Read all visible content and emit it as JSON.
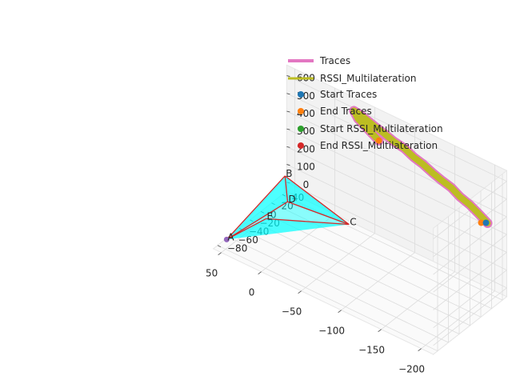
{
  "chart_data": {
    "type": "scatter3d",
    "axes": {
      "x": {
        "ticks": [
          -200,
          -150,
          -100,
          -50,
          0,
          50
        ],
        "tick_labels": [
          "−200",
          "−150",
          "−100",
          "−50",
          "0",
          "50"
        ],
        "range": [
          -215,
          60
        ]
      },
      "y": {
        "ticks": [
          -80,
          -60,
          -40,
          -20,
          0,
          20,
          40
        ],
        "tick_labels": [
          "−80",
          "−60",
          "−40",
          "−20",
          "0",
          "20",
          "40"
        ],
        "range": [
          -88,
          48
        ]
      },
      "z": {
        "ticks": [
          0,
          100,
          200,
          300,
          400,
          500,
          600
        ],
        "tick_labels": [
          "0",
          "100",
          "200",
          "300",
          "400",
          "500",
          "600"
        ],
        "range": [
          -50,
          660
        ]
      },
      "grid": true
    },
    "legend": {
      "placement": "top-right",
      "entries": [
        {
          "label": "Traces",
          "kind": "line",
          "color": "#e377c2"
        },
        {
          "label": "RSSI_Multilateration",
          "kind": "line",
          "color": "#bcbd22"
        },
        {
          "label": "Start Traces",
          "kind": "marker",
          "color": "#1f77b4"
        },
        {
          "label": "End   Traces",
          "kind": "marker",
          "color": "#ff7f0e"
        },
        {
          "label": "Start RSSI_Multilateration",
          "kind": "marker",
          "color": "#2ca02c"
        },
        {
          "label": "End   RSSI_Multilateration",
          "kind": "marker",
          "color": "#d62728"
        }
      ]
    },
    "anchors": [
      {
        "label": "A",
        "x": 50,
        "y": -78,
        "z": 0
      },
      {
        "label": "B",
        "x": 50,
        "y": 30,
        "z": 100
      },
      {
        "label": "C",
        "x": -30,
        "y": 30,
        "z": 0
      },
      {
        "label": "D",
        "x": 40,
        "y": 20,
        "z": 0
      },
      {
        "label": "E",
        "x": 40,
        "y": -20,
        "z": 0
      }
    ],
    "anchor_edges": [
      [
        "A",
        "B"
      ],
      [
        "B",
        "C"
      ],
      [
        "C",
        "E"
      ],
      [
        "E",
        "A"
      ],
      [
        "D",
        "A"
      ],
      [
        "D",
        "B"
      ],
      [
        "D",
        "C"
      ]
    ],
    "anchor_fill_color": "#00ffff",
    "anchor_edge_color": "#d62728",
    "trace": {
      "color": "#e377c2",
      "rssi_color": "#bcbd22",
      "points": [
        {
          "x": -210,
          "y": 20,
          "z": 420
        },
        {
          "x": -198,
          "y": 22,
          "z": 440
        },
        {
          "x": -185,
          "y": 24,
          "z": 460
        },
        {
          "x": -172,
          "y": 25,
          "z": 475
        },
        {
          "x": -160,
          "y": 27,
          "z": 495
        },
        {
          "x": -148,
          "y": 28,
          "z": 505
        },
        {
          "x": -135,
          "y": 29,
          "z": 520
        },
        {
          "x": -122,
          "y": 30,
          "z": 540
        },
        {
          "x": -110,
          "y": 31,
          "z": 550
        },
        {
          "x": -98,
          "y": 32,
          "z": 570
        },
        {
          "x": -85,
          "y": 32,
          "z": 580
        },
        {
          "x": -72,
          "y": 33,
          "z": 595
        },
        {
          "x": -60,
          "y": 34,
          "z": 605
        },
        {
          "x": -50,
          "y": 35,
          "z": 615
        },
        {
          "x": -40,
          "y": 36,
          "z": 625
        },
        {
          "x": -32,
          "y": 36,
          "z": 630
        },
        {
          "x": -38,
          "y": 35,
          "z": 600
        },
        {
          "x": -48,
          "y": 34,
          "z": 580
        },
        {
          "x": -58,
          "y": 33,
          "z": 560
        },
        {
          "x": -66,
          "y": 32,
          "z": 545
        }
      ],
      "start": {
        "x": -208,
        "y": 20,
        "z": 418
      },
      "end": {
        "x": -66,
        "y": 32,
        "z": 545
      }
    }
  }
}
